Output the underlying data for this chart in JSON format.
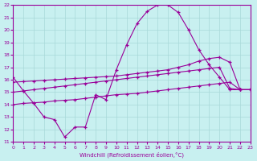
{
  "xlabel": "Windchill (Refroidissement éolien,°C)",
  "bg_color": "#c8f0f0",
  "grid_color": "#a8d8d8",
  "line_color": "#990099",
  "xlim": [
    0,
    23
  ],
  "ylim": [
    11,
    22
  ],
  "xticks": [
    0,
    1,
    2,
    3,
    4,
    5,
    6,
    7,
    8,
    9,
    10,
    11,
    12,
    13,
    14,
    15,
    16,
    17,
    18,
    19,
    20,
    21,
    22,
    23
  ],
  "yticks": [
    11,
    12,
    13,
    14,
    15,
    16,
    17,
    18,
    19,
    20,
    21,
    22
  ],
  "line1_x": [
    0,
    1,
    2,
    3,
    4,
    5,
    6,
    7,
    8,
    9,
    10,
    11,
    12,
    13,
    14,
    15,
    16,
    17,
    18,
    19,
    20,
    21,
    22,
    23
  ],
  "line1_y": [
    16.2,
    15.1,
    14.1,
    13.0,
    12.8,
    11.4,
    12.2,
    12.2,
    14.8,
    14.4,
    16.8,
    18.8,
    20.5,
    21.5,
    22.0,
    22.0,
    21.4,
    20.0,
    18.4,
    17.2,
    16.2,
    15.2,
    15.2,
    15.2
  ],
  "line2_x": [
    0,
    1,
    2,
    3,
    4,
    5,
    6,
    7,
    8,
    9,
    10,
    11,
    12,
    13,
    14,
    15,
    16,
    17,
    18,
    19,
    20,
    21,
    22,
    23
  ],
  "line2_y": [
    15.8,
    15.85,
    15.9,
    15.95,
    16.0,
    16.05,
    16.1,
    16.15,
    16.2,
    16.25,
    16.3,
    16.4,
    16.5,
    16.6,
    16.7,
    16.8,
    17.0,
    17.2,
    17.5,
    17.7,
    17.8,
    17.4,
    15.2,
    15.2
  ],
  "line3_x": [
    0,
    1,
    2,
    3,
    4,
    5,
    6,
    7,
    8,
    9,
    10,
    11,
    12,
    13,
    14,
    15,
    16,
    17,
    18,
    19,
    20,
    21,
    22,
    23
  ],
  "line3_y": [
    15.0,
    15.1,
    15.2,
    15.3,
    15.4,
    15.5,
    15.6,
    15.7,
    15.8,
    15.9,
    16.0,
    16.1,
    16.2,
    16.3,
    16.4,
    16.5,
    16.6,
    16.7,
    16.8,
    16.9,
    17.0,
    15.3,
    15.2,
    15.2
  ],
  "line4_x": [
    0,
    1,
    2,
    3,
    4,
    5,
    6,
    7,
    8,
    9,
    10,
    11,
    12,
    13,
    14,
    15,
    16,
    17,
    18,
    19,
    20,
    21,
    22,
    23
  ],
  "line4_y": [
    14.0,
    14.1,
    14.15,
    14.2,
    14.3,
    14.35,
    14.4,
    14.5,
    14.6,
    14.7,
    14.8,
    14.85,
    14.9,
    15.0,
    15.1,
    15.2,
    15.3,
    15.4,
    15.5,
    15.6,
    15.7,
    15.8,
    15.2,
    15.2
  ]
}
